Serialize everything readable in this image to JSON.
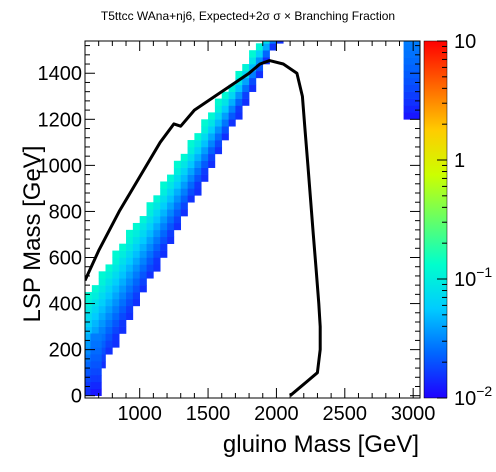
{
  "chart_data": {
    "type": "heatmap",
    "title": "T5ttcc WAna+nj6, Expected+2σ σ × Branching Fraction",
    "xlabel": "gluino Mass [GeV]",
    "ylabel": "LSP Mass [GeV]",
    "xlim": [
      600,
      3050
    ],
    "ylim": [
      -10,
      1540
    ],
    "x_ticks": [
      1000,
      1500,
      2000,
      2500,
      3000
    ],
    "x_tick_labels": [
      "1000",
      "1500",
      "2000",
      "2500",
      "3000"
    ],
    "y_ticks": [
      0,
      200,
      400,
      600,
      800,
      1000,
      1200,
      1400
    ],
    "y_tick_labels": [
      "0",
      "200",
      "400",
      "600",
      "800",
      "1000",
      "1200",
      "1400"
    ],
    "colorbar": {
      "scale": "log",
      "range": [
        0.01,
        10
      ],
      "tick_labels": [
        "10",
        "1",
        "10−1",
        "10−2"
      ],
      "colors": [
        "#1e00ff",
        "#0066ff",
        "#00ccff",
        "#00ffcc",
        "#66ff66",
        "#ccff00",
        "#ffcc00",
        "#ff6600",
        "#ff0000"
      ]
    },
    "colored_bands": [
      {
        "name": "left diagonal band",
        "lower_edge": [
          [
            600,
            0
          ],
          [
            2000,
            1540
          ]
        ],
        "upper_edge": [
          [
            600,
            400
          ],
          [
            1900,
            1540
          ]
        ],
        "value_range": [
          0.015,
          0.12
        ]
      },
      {
        "name": "left bottom column",
        "x_range": [
          640,
          720
        ],
        "y_range": [
          0,
          260
        ],
        "value_range": [
          0.012,
          0.03
        ]
      },
      {
        "name": "right edge column",
        "x_range": [
          2930,
          3050
        ],
        "y_range": [
          1200,
          1540
        ],
        "value_range": [
          0.012,
          0.03
        ]
      }
    ],
    "contour": {
      "name": "Expected+2σ",
      "color": "#000000",
      "points": [
        [
          600,
          500
        ],
        [
          700,
          630
        ],
        [
          850,
          800
        ],
        [
          1000,
          950
        ],
        [
          1150,
          1100
        ],
        [
          1250,
          1180
        ],
        [
          1300,
          1170
        ],
        [
          1400,
          1240
        ],
        [
          1550,
          1300
        ],
        [
          1700,
          1360
        ],
        [
          1800,
          1400
        ],
        [
          1880,
          1440
        ],
        [
          1950,
          1455
        ],
        [
          2050,
          1440
        ],
        [
          2150,
          1400
        ],
        [
          2190,
          1300
        ],
        [
          2210,
          1150
        ],
        [
          2230,
          1000
        ],
        [
          2250,
          850
        ],
        [
          2270,
          700
        ],
        [
          2290,
          550
        ],
        [
          2310,
          400
        ],
        [
          2320,
          300
        ],
        [
          2320,
          200
        ],
        [
          2300,
          100
        ],
        [
          2200,
          50
        ],
        [
          2100,
          0
        ]
      ]
    }
  }
}
